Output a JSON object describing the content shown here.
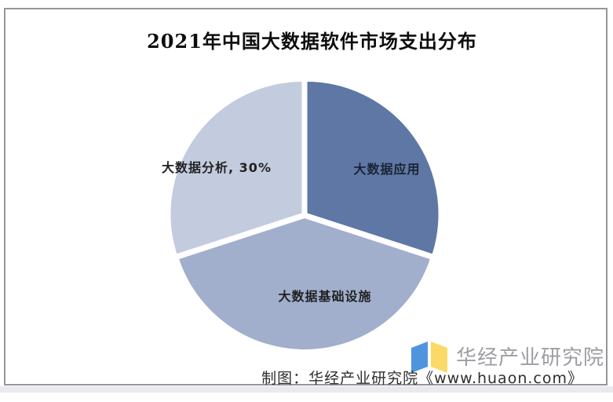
{
  "page": {
    "footer": {
      "credit": "制图：华经产业研究院《www.huaon.com》"
    },
    "watermark": {
      "brand": "华经产业研究院",
      "logo_icon": "open-book-icon",
      "logo_colors": {
        "left_page": "#4f95de",
        "right_page": "#fbd966"
      }
    },
    "colors": {
      "frame_border": "#96969c",
      "background": "#ffffff",
      "bottom_strip": "#e9e9ee",
      "brand_text": "#9d9da3",
      "credit_text": "#2e2e2e"
    }
  },
  "chart_data": {
    "type": "pie",
    "title": "2021年中国大数据软件市场支出分布",
    "direction": "clockwise",
    "start_angle_deg": 0,
    "legend": "none",
    "slices": [
      {
        "id": "application",
        "label": "大数据应用",
        "display_label": "大数据应用",
        "value": 30,
        "color": "#5e77a5",
        "label_color": "#1a2433"
      },
      {
        "id": "infrastructure",
        "label": "大数据基础设施",
        "display_label": "大数据基础设施",
        "value": 40,
        "color": "#a1afcc",
        "label_color": "#222222"
      },
      {
        "id": "analysis",
        "label": "大数据分析",
        "display_label": "大数据分析, 30%",
        "value": 30,
        "color": "#c3ccde",
        "label_color": "#222222"
      }
    ]
  }
}
